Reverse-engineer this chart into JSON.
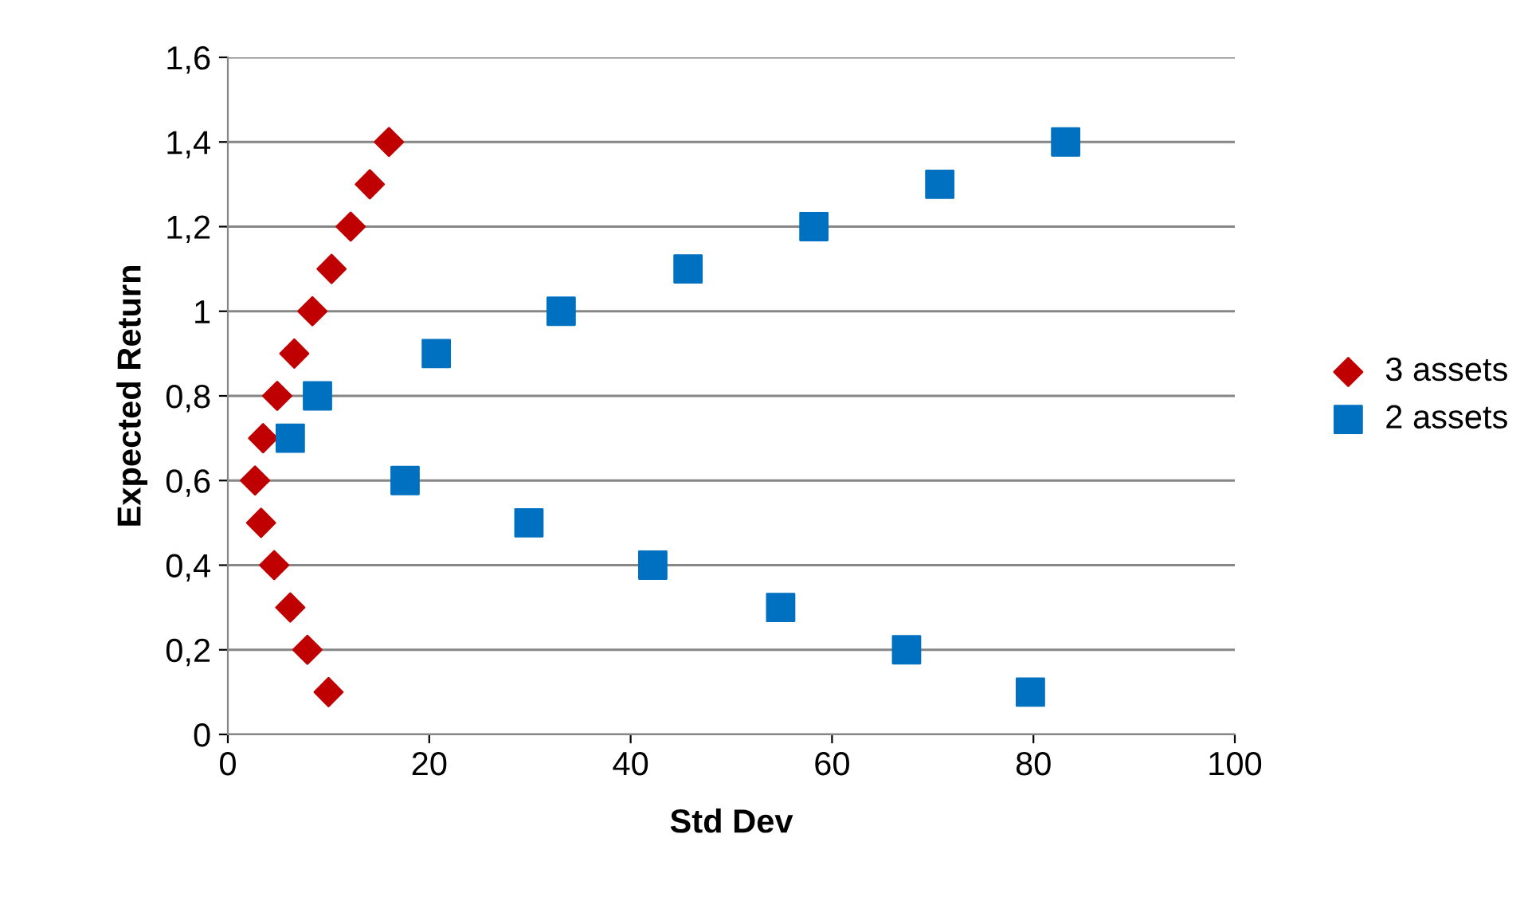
{
  "chart_data": {
    "type": "scatter",
    "xlabel": "Std Dev",
    "ylabel": "Expected Return",
    "xlim": [
      0,
      100
    ],
    "xticks": [
      0,
      20,
      40,
      60,
      80,
      100
    ],
    "ylim": [
      0,
      1.6
    ],
    "yticks": [
      0,
      {
        "value": 0.2,
        "label": "0,2"
      },
      {
        "value": 0.4,
        "label": "0,4"
      },
      {
        "value": 0.6,
        "label": "0,6"
      },
      {
        "value": 0.8,
        "label": "0,8"
      },
      1,
      {
        "value": 1.2,
        "label": "1,2"
      },
      {
        "value": 1.4,
        "label": "1,4"
      },
      {
        "value": 1.6,
        "label": "1,6"
      }
    ],
    "grid": "y",
    "legend": "right",
    "series": [
      {
        "name": "3 assets",
        "color": "#c00000",
        "marker": "diamond",
        "x": [
          2.7,
          3.3,
          3.5,
          4.6,
          4.9,
          6.2,
          6.6,
          7.9,
          8.4,
          10.0,
          10.3,
          12.2,
          14.1,
          16.0
        ],
        "values": [
          0.6,
          0.5,
          0.7,
          0.4,
          0.8,
          0.3,
          0.9,
          0.2,
          1.0,
          0.1,
          1.1,
          1.2,
          1.3,
          1.4
        ]
      },
      {
        "name": "2 assets",
        "color": "#0070c0",
        "marker": "square",
        "x": [
          6.2,
          8.9,
          17.6,
          20.7,
          29.9,
          33.1,
          42.2,
          45.7,
          54.9,
          58.2,
          67.4,
          70.7,
          79.7,
          83.2
        ],
        "values": [
          0.7,
          0.8,
          0.6,
          0.9,
          0.5,
          1.0,
          0.4,
          1.1,
          0.3,
          1.2,
          0.2,
          1.3,
          0.1,
          1.4
        ]
      }
    ]
  }
}
